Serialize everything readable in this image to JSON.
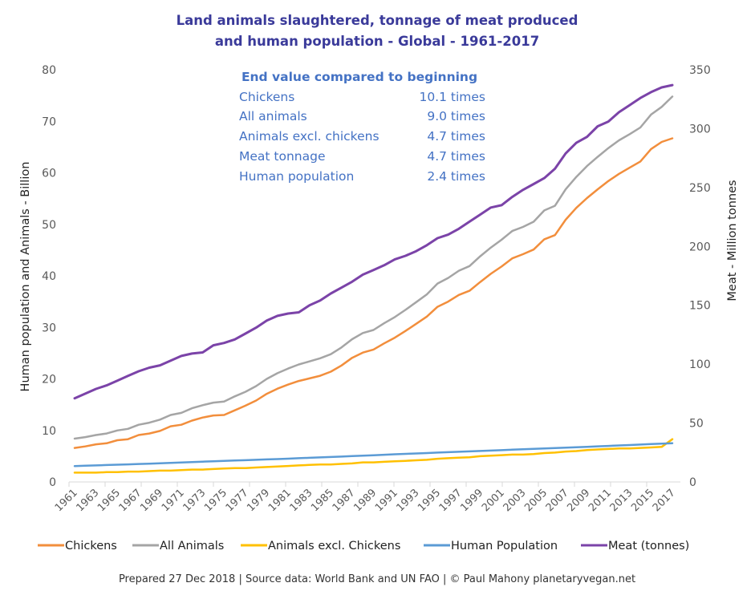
{
  "chart_data": {
    "type": "line",
    "title": [
      "Land  animals slaughtered, tonnage of meat produced",
      "and human population - Global - 1961-2017"
    ],
    "xlabel": "",
    "ylabel_left": "Human population and Animals - Billion",
    "ylabel_right": "Meat - Million tonnes",
    "ylim_left": [
      0,
      80
    ],
    "ylim_right": [
      0,
      350
    ],
    "yticks_left": [
      "0",
      "10",
      "20",
      "30",
      "40",
      "50",
      "60",
      "70",
      "80"
    ],
    "yticks_right": [
      "0",
      "50",
      "100",
      "150",
      "200",
      "250",
      "300",
      "350"
    ],
    "x": [
      1961,
      1962,
      1963,
      1964,
      1965,
      1966,
      1967,
      1968,
      1969,
      1970,
      1971,
      1972,
      1973,
      1974,
      1975,
      1976,
      1977,
      1978,
      1979,
      1980,
      1981,
      1982,
      1983,
      1984,
      1985,
      1986,
      1987,
      1988,
      1989,
      1990,
      1991,
      1992,
      1993,
      1994,
      1995,
      1996,
      1997,
      1998,
      1999,
      2000,
      2001,
      2002,
      2003,
      2004,
      2005,
      2006,
      2007,
      2008,
      2009,
      2010,
      2011,
      2012,
      2013,
      2014,
      2015,
      2016,
      2017
    ],
    "xtick_labels": [
      "1961",
      "1963",
      "1965",
      "1967",
      "1969",
      "1971",
      "1973",
      "1975",
      "1977",
      "1979",
      "1981",
      "1983",
      "1985",
      "1987",
      "1989",
      "1991",
      "1993",
      "1995",
      "1997",
      "1999",
      "2001",
      "2003",
      "2005",
      "2007",
      "2009",
      "2011",
      "2013",
      "2015",
      "2017"
    ],
    "grid": false,
    "legend_position": "bottom",
    "series": [
      {
        "name": "Chickens",
        "axis": "left",
        "color": "#f28e3c",
        "values": [
          6.6,
          6.9,
          7.3,
          7.5,
          8.1,
          8.3,
          9.1,
          9.4,
          9.9,
          10.8,
          11.1,
          11.9,
          12.5,
          12.9,
          13.0,
          13.9,
          14.8,
          15.8,
          17.1,
          18.1,
          18.9,
          19.6,
          20.1,
          20.6,
          21.4,
          22.6,
          24.1,
          25.1,
          25.7,
          26.9,
          28.0,
          29.3,
          30.7,
          32.1,
          34.0,
          35.0,
          36.3,
          37.1,
          38.8,
          40.4,
          41.8,
          43.4,
          44.2,
          45.1,
          47.1,
          47.9,
          50.9,
          53.2,
          55.1,
          56.8,
          58.4,
          59.8,
          61.0,
          62.2,
          64.6,
          66.0,
          66.7
        ]
      },
      {
        "name": "All Animals",
        "axis": "left",
        "color": "#a5a5a5",
        "values": [
          8.4,
          8.7,
          9.1,
          9.4,
          10.0,
          10.3,
          11.1,
          11.5,
          12.1,
          13.0,
          13.4,
          14.3,
          14.9,
          15.4,
          15.6,
          16.6,
          17.5,
          18.6,
          20.0,
          21.1,
          22.0,
          22.8,
          23.4,
          24.0,
          24.8,
          26.1,
          27.7,
          28.9,
          29.5,
          30.8,
          32.0,
          33.4,
          34.9,
          36.4,
          38.5,
          39.6,
          41.0,
          41.9,
          43.8,
          45.5,
          47.0,
          48.7,
          49.5,
          50.5,
          52.7,
          53.6,
          56.8,
          59.2,
          61.3,
          63.1,
          64.8,
          66.3,
          67.5,
          68.8,
          71.3,
          72.8,
          74.8
        ]
      },
      {
        "name": "Animals excl. Chickens",
        "axis": "left",
        "color": "#ffc000",
        "values": [
          1.8,
          1.8,
          1.8,
          1.9,
          1.9,
          2.0,
          2.0,
          2.1,
          2.2,
          2.2,
          2.3,
          2.4,
          2.4,
          2.5,
          2.6,
          2.7,
          2.7,
          2.8,
          2.9,
          3.0,
          3.1,
          3.2,
          3.3,
          3.4,
          3.4,
          3.5,
          3.6,
          3.8,
          3.8,
          3.9,
          4.0,
          4.1,
          4.2,
          4.3,
          4.5,
          4.6,
          4.7,
          4.8,
          5.0,
          5.1,
          5.2,
          5.3,
          5.3,
          5.4,
          5.6,
          5.7,
          5.9,
          6.0,
          6.2,
          6.3,
          6.4,
          6.5,
          6.5,
          6.6,
          6.7,
          6.8,
          8.3
        ]
      },
      {
        "name": "Human Population",
        "axis": "left",
        "color": "#5b9bd5",
        "values": [
          3.08,
          3.14,
          3.21,
          3.28,
          3.34,
          3.41,
          3.48,
          3.55,
          3.63,
          3.7,
          3.78,
          3.86,
          3.93,
          4.0,
          4.08,
          4.15,
          4.22,
          4.29,
          4.37,
          4.44,
          4.52,
          4.6,
          4.68,
          4.76,
          4.84,
          4.92,
          5.01,
          5.1,
          5.19,
          5.28,
          5.37,
          5.45,
          5.53,
          5.61,
          5.69,
          5.77,
          5.85,
          5.93,
          6.01,
          6.09,
          6.17,
          6.25,
          6.33,
          6.41,
          6.49,
          6.57,
          6.65,
          6.74,
          6.82,
          6.91,
          6.99,
          7.08,
          7.16,
          7.25,
          7.34,
          7.43,
          7.51
        ]
      },
      {
        "name": "Meat (tonnes)",
        "axis": "right",
        "color": "#7b43a8",
        "values": [
          71,
          75,
          79,
          82,
          86,
          90,
          94,
          97,
          99,
          103,
          107,
          109,
          110,
          116,
          118,
          121,
          126,
          131,
          137,
          141,
          143,
          144,
          150,
          154,
          160,
          165,
          170,
          176,
          180,
          184,
          189,
          192,
          196,
          201,
          207,
          210,
          215,
          221,
          227,
          233,
          235,
          242,
          248,
          253,
          258,
          266,
          279,
          288,
          293,
          302,
          306,
          314,
          320,
          326,
          331,
          335,
          337
        ]
      }
    ],
    "annotation": {
      "heading": "End value compared to beginning",
      "rows": [
        {
          "label": "Chickens",
          "value": "10.1 times"
        },
        {
          "label": "All animals",
          "value": "9.0 times"
        },
        {
          "label": "Animals excl. chickens",
          "value": "4.7 times"
        },
        {
          "label": "Meat tonnage",
          "value": "4.7 times"
        },
        {
          "label": "Human population",
          "value": "2.4 times"
        }
      ]
    },
    "footer": "Prepared 27 Dec 2018 | Source data: World Bank and UN FAO | © Paul Mahony planetaryvegan.net"
  }
}
